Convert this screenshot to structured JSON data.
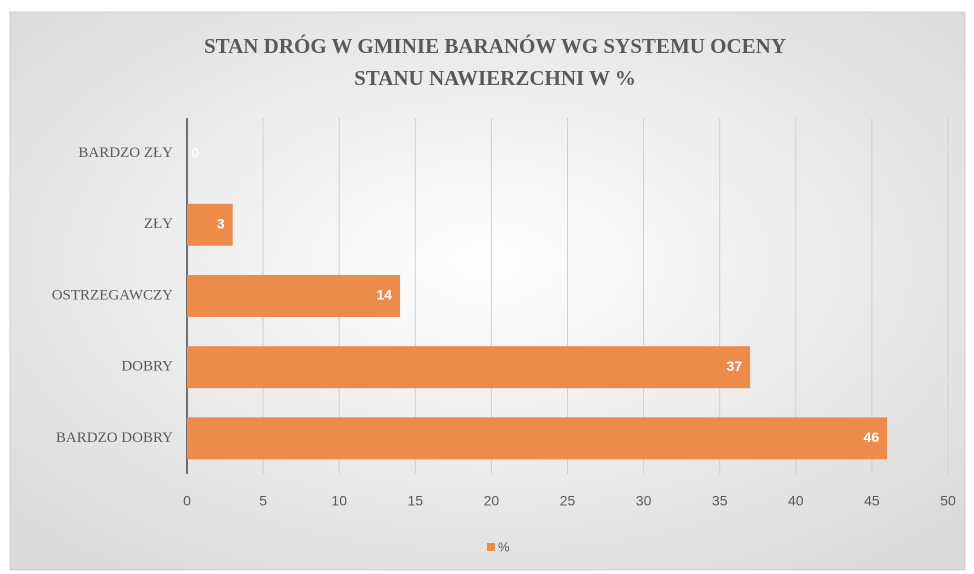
{
  "chart_data": {
    "type": "hbar",
    "title": [
      "STAN DRÓG W GMINIE BARANÓW WG SYSTEMU OCENY",
      "STANU NAWIERZCHNI W %"
    ],
    "categories": [
      "BARDZO ZŁY",
      "ZŁY",
      "OSTRZEGAWCZY",
      "DOBRY",
      "BARDZO DOBRY"
    ],
    "series": [
      {
        "name": "%",
        "color": "#ed8b4b",
        "values": [
          0,
          3,
          14,
          37,
          46
        ]
      }
    ],
    "xlim": [
      0,
      50
    ],
    "xticks": [
      0,
      5,
      10,
      15,
      20,
      25,
      30,
      35,
      40,
      45,
      50
    ],
    "grid": true,
    "legend": "bottom"
  }
}
